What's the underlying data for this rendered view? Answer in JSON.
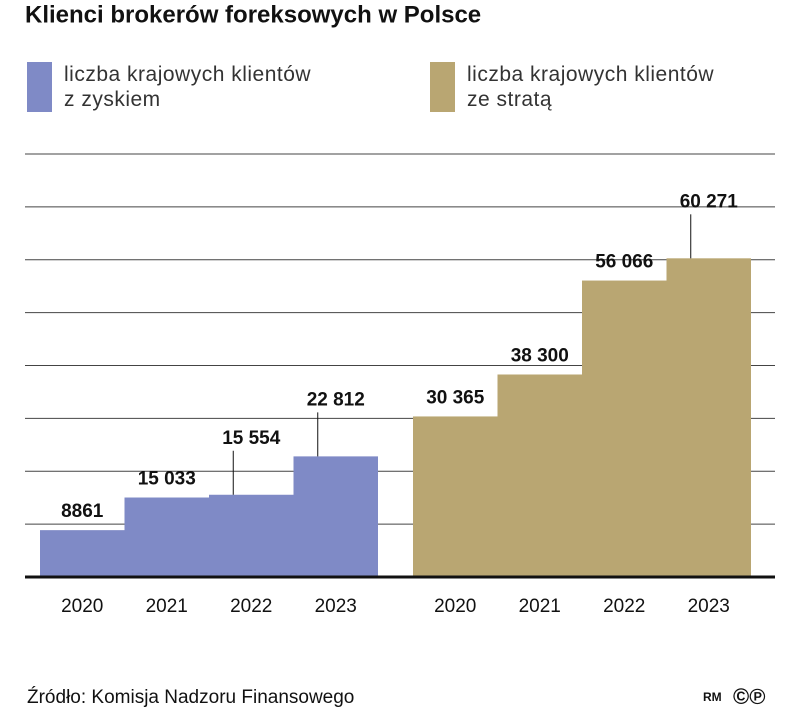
{
  "chart_data": {
    "type": "bar",
    "title": "Klienci brokerów foreksowych w Polsce",
    "categories": [
      "2020",
      "2021",
      "2022",
      "2023"
    ],
    "series": [
      {
        "name": "liczba krajowych klientów z zyskiem",
        "color": "#7f8ac6",
        "values": [
          8861,
          15033,
          15554,
          22812
        ],
        "value_labels": [
          "8861",
          "15 033",
          "15 554",
          "22 812"
        ]
      },
      {
        "name": "liczba krajowych klientów ze stratą",
        "color": "#b9a672",
        "values": [
          30365,
          38300,
          56066,
          60271
        ],
        "value_labels": [
          "30 365",
          "38 300",
          "56 066",
          "60 271"
        ]
      }
    ],
    "ylim": [
      0,
      80000
    ],
    "yticks": [
      0,
      10000,
      20000,
      30000,
      40000,
      50000,
      60000,
      70000,
      80000
    ],
    "grid": true,
    "source": "Źródło: Komisja Nadzoru Finansowego",
    "credit": "RM",
    "copyright_marks": "©℗"
  }
}
